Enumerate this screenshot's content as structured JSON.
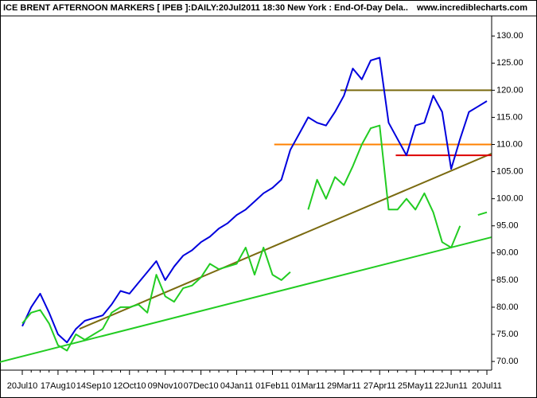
{
  "chart_data": {
    "type": "line",
    "title": "ICE BRENT AFTERNOON MARKERS [ IPEB ]:DAILY:20Jul2011 18:30 New York : End-Of-Day Dela..",
    "source": "www.incrediblecharts.com",
    "categories": [
      "20Jul10",
      null,
      null,
      null,
      "17Aug10",
      null,
      null,
      null,
      "14Sep10",
      null,
      null,
      null,
      "12Oct10",
      null,
      null,
      null,
      "09Nov10",
      null,
      null,
      null,
      "07Dec10",
      null,
      null,
      null,
      "04Jan11",
      null,
      null,
      null,
      "01Feb11",
      null,
      null,
      null,
      "01Mar11",
      null,
      null,
      null,
      "29Mar11",
      null,
      null,
      null,
      "27Apr11",
      null,
      null,
      null,
      "25May11",
      null,
      null,
      null,
      "22Jun11",
      null,
      null,
      null,
      "20Jul11"
    ],
    "series": [
      {
        "color": "#0000dd",
        "values": [
          76.5,
          80,
          82.5,
          79,
          75,
          73.5,
          76,
          77.5,
          78,
          78.5,
          80.5,
          83,
          82.5,
          84.5,
          86.5,
          88.5,
          85,
          87.5,
          89.5,
          90.5,
          92,
          93,
          94.5,
          95.5,
          97,
          98,
          99.5,
          101,
          102,
          103.5,
          109,
          112,
          115,
          114,
          113.5,
          116,
          119,
          124,
          122,
          125.5,
          126,
          114,
          111,
          108,
          113.5,
          114,
          119,
          116,
          105.5,
          111,
          116,
          117,
          118
        ]
      },
      {
        "color": "#22cc22",
        "values": [
          77,
          79,
          79.5,
          77,
          73,
          72,
          75,
          74,
          75,
          76,
          79,
          80,
          80,
          80.5,
          79,
          86,
          82,
          81,
          83.5,
          84,
          85.5,
          88,
          87,
          87.5,
          88,
          91,
          86,
          91,
          86,
          85,
          86.5,
          null,
          98,
          103.5,
          100,
          104,
          102.5,
          106,
          110,
          113,
          113.5,
          98,
          98,
          100,
          98,
          101,
          97.5,
          92,
          91,
          95,
          null,
          97,
          97.5
        ]
      }
    ],
    "lines": [
      {
        "color": "#22cc22",
        "x0": -2.5,
        "y0": 69.9,
        "x1": 52.5,
        "y1": 92.9
      },
      {
        "color": "#7a6a10",
        "x0": 6.4,
        "y0": 76,
        "x1": 52.5,
        "y1": 108.3
      },
      {
        "color": "#7a6a10",
        "x0": 35.6,
        "y0": 120,
        "x1": 52.5,
        "y1": 120
      },
      {
        "color": "#ff8000",
        "x0": 28.2,
        "y0": 110,
        "x1": 52.5,
        "y1": 110
      },
      {
        "color": "#dd0000",
        "x0": 41.8,
        "y0": 108,
        "x1": 52.5,
        "y1": 108
      }
    ],
    "ylim": [
      68.4,
      133.7
    ],
    "yticks": [
      {
        "value": 70,
        "label": "70.00"
      },
      {
        "value": 75,
        "label": "75.00"
      },
      {
        "value": 80,
        "label": "80.00"
      },
      {
        "value": 85,
        "label": "85.00"
      },
      {
        "value": 90,
        "label": "90.00"
      },
      {
        "value": 95,
        "label": "95.00"
      },
      {
        "value": 100,
        "label": "100.00"
      },
      {
        "value": 105,
        "label": "105.00"
      },
      {
        "value": 110,
        "label": "110.00"
      },
      {
        "value": 115,
        "label": "115.00"
      },
      {
        "value": 120,
        "label": "120.00"
      },
      {
        "value": 125,
        "label": "125.00"
      },
      {
        "value": 130,
        "label": "130.00"
      }
    ]
  }
}
